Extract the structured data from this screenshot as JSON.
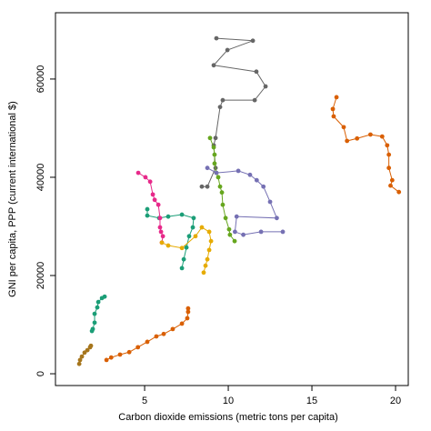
{
  "chart_data": {
    "type": "line",
    "markers": true,
    "x_label": "Carbon dioxide emissions (metric tons per capita)",
    "y_label": "GNI per capita, PPP (current international $)",
    "xlim": [
      -0.33,
      20.76
    ],
    "ylim": [
      -2400,
      73500
    ],
    "xticks": [
      5,
      10,
      15,
      20
    ],
    "yticks": [
      0,
      20000,
      40000,
      60000
    ],
    "series": [
      {
        "color": "#666666",
        "x": [
          9.29,
          11.47,
          9.95,
          9.13,
          11.68,
          12.23,
          11.58,
          9.67,
          9.51,
          9.24,
          9.13,
          9.24,
          8.75,
          8.42
        ],
        "values": [
          68300,
          67800,
          65900,
          62800,
          61500,
          58500,
          55700,
          55700,
          54300,
          48000,
          46500,
          41900,
          38100,
          38100
        ]
      },
      {
        "color": "#d95f02",
        "x": [
          16.47,
          16.25,
          16.3,
          16.9,
          17.1,
          17.7,
          18.5,
          19.2,
          19.5,
          19.6,
          19.6,
          19.8,
          19.7,
          20.2
        ],
        "values": [
          56300,
          53900,
          52400,
          50200,
          47400,
          47900,
          48700,
          48300,
          46500,
          44600,
          41900,
          39400,
          38300,
          37000
        ]
      },
      {
        "color": "#d95f02",
        "x": [
          2.72,
          3.0,
          3.53,
          4.08,
          4.6,
          5.16,
          5.7,
          6.14,
          6.68,
          7.23,
          7.55,
          7.6,
          7.6
        ],
        "values": [
          2800,
          3300,
          3900,
          4400,
          5400,
          6500,
          7600,
          8100,
          9100,
          10200,
          11300,
          12600,
          13300
        ]
      },
      {
        "color": "#a6761d",
        "x": [
          1.09,
          1.14,
          1.25,
          1.41,
          1.58,
          1.74,
          1.79
        ],
        "values": [
          2000,
          2800,
          3500,
          4300,
          4800,
          5400,
          5700
        ]
      },
      {
        "color": "#1b9e77",
        "x": [
          2.61,
          2.45,
          2.23,
          2.17,
          2.01,
          2.01,
          1.9,
          1.85
        ],
        "values": [
          15700,
          15400,
          14600,
          13500,
          12200,
          10400,
          9100,
          8700
        ]
      },
      {
        "color": "#1b9e77",
        "x": [
          5.16,
          5.16,
          5.87,
          6.41,
          7.23,
          7.93,
          7.88,
          7.66,
          7.5,
          7.34,
          7.23
        ],
        "values": [
          33500,
          32200,
          31700,
          32000,
          32400,
          31700,
          29800,
          28000,
          25700,
          23300,
          21500
        ]
      },
      {
        "color": "#e7298a",
        "x": [
          4.62,
          5.05,
          5.33,
          5.49,
          5.6,
          5.82,
          5.92,
          5.92,
          5.98,
          6.09,
          6.03
        ],
        "values": [
          40900,
          40000,
          39100,
          36500,
          35400,
          34400,
          31700,
          29800,
          28900,
          28000,
          26700
        ]
      },
      {
        "color": "#e6ab02",
        "x": [
          6.03,
          6.41,
          7.23,
          8.04,
          8.42,
          8.86,
          8.97,
          8.86,
          8.75,
          8.64,
          8.53
        ],
        "values": [
          26700,
          26100,
          25600,
          28000,
          29800,
          28900,
          27000,
          25200,
          23300,
          22000,
          20600
        ]
      },
      {
        "color": "#66a61e",
        "x": [
          8.91,
          9.13,
          9.18,
          9.18,
          9.29,
          9.4,
          9.51,
          9.62,
          9.67,
          9.84,
          10.05,
          10.1,
          10.38
        ],
        "values": [
          48000,
          46100,
          44600,
          42800,
          40900,
          40000,
          38100,
          36900,
          34400,
          31700,
          29400,
          28300,
          27000
        ]
      },
      {
        "color": "#7570b3",
        "x": [
          8.75,
          9.29,
          10.6,
          11.3,
          11.7,
          12.1,
          12.5,
          12.9,
          10.5,
          10.4,
          10.9,
          11.96,
          13.26
        ],
        "values": [
          41900,
          40900,
          41300,
          40500,
          39400,
          38100,
          35000,
          31700,
          32000,
          28900,
          28300,
          28900,
          28900
        ]
      }
    ]
  }
}
